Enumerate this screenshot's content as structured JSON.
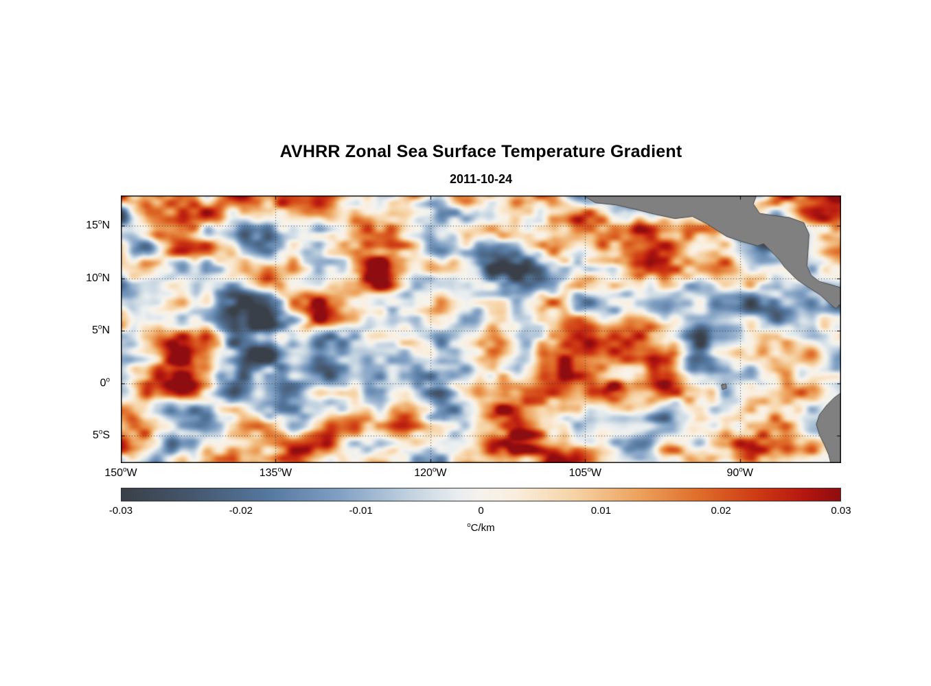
{
  "chart_data": {
    "type": "heatmap",
    "title": "AVHRR Zonal Sea Surface Temperature Gradient",
    "subtitle": "2011-10-24",
    "degree_symbol": "o",
    "colorbar_label_deg": "o",
    "colorbar_label_unit": "C/km",
    "lon_range": [
      -150,
      -80.2
    ],
    "lat_range": [
      -7.6,
      17.9
    ],
    "x_axis": {
      "ticks": [
        {
          "label": "150",
          "hemi": "W",
          "lon": -150
        },
        {
          "label": "135",
          "hemi": "W",
          "lon": -135
        },
        {
          "label": "120",
          "hemi": "W",
          "lon": -120
        },
        {
          "label": "105",
          "hemi": "W",
          "lon": -105
        },
        {
          "label": "90",
          "hemi": "W",
          "lon": -90
        }
      ]
    },
    "y_axis": {
      "ticks": [
        {
          "label": "15",
          "hemi": "N",
          "lat": 15
        },
        {
          "label": "10",
          "hemi": "N",
          "lat": 10
        },
        {
          "label": "5",
          "hemi": "N",
          "lat": 5
        },
        {
          "label": "0",
          "hemi": "",
          "lat": 0
        },
        {
          "label": "5",
          "hemi": "S",
          "lat": -5
        }
      ]
    },
    "colorbar": {
      "min": -0.03,
      "max": 0.03,
      "tick_labels": [
        "-0.03",
        "-0.02",
        "-0.01",
        "0",
        "0.01",
        "0.02",
        "0.03"
      ]
    },
    "colormap_stops": [
      {
        "v": -0.03,
        "c": "#3a4049"
      },
      {
        "v": -0.024,
        "c": "#46586f"
      },
      {
        "v": -0.018,
        "c": "#54779e"
      },
      {
        "v": -0.012,
        "c": "#7f9fc3"
      },
      {
        "v": -0.006,
        "c": "#c2d2e0"
      },
      {
        "v": -0.002,
        "c": "#e9eef0"
      },
      {
        "v": 0.0,
        "c": "#f6f3ec"
      },
      {
        "v": 0.003,
        "c": "#faeedd"
      },
      {
        "v": 0.008,
        "c": "#f6d2a4"
      },
      {
        "v": 0.013,
        "c": "#eda45f"
      },
      {
        "v": 0.018,
        "c": "#e0702c"
      },
      {
        "v": 0.023,
        "c": "#cf3b14"
      },
      {
        "v": 0.027,
        "c": "#b51710"
      },
      {
        "v": 0.03,
        "c": "#8f0d10"
      }
    ],
    "grid": true,
    "grid_color": "#3a3a3a",
    "land_color": "#808080",
    "coast_color": "#474747",
    "noise": {
      "seed": 20111024,
      "gain": 1.7,
      "bias": 0.04,
      "octaves": [
        {
          "wx": 95,
          "wy": 55,
          "amp": 0.5
        },
        {
          "wx": 42,
          "wy": 26,
          "amp": 0.33
        },
        {
          "wx": 18,
          "wy": 12,
          "amp": 0.17
        }
      ]
    },
    "land_polygons": {
      "central_america": [
        [
          -105.2,
          17.9
        ],
        [
          -104.0,
          17.2
        ],
        [
          -102.0,
          17.0
        ],
        [
          -100.2,
          16.6
        ],
        [
          -98.2,
          16.1
        ],
        [
          -96.3,
          15.7
        ],
        [
          -94.6,
          15.9
        ],
        [
          -93.2,
          15.2
        ],
        [
          -91.3,
          14.0
        ],
        [
          -89.8,
          13.5
        ],
        [
          -88.3,
          13.1
        ],
        [
          -87.7,
          13.3
        ],
        [
          -87.2,
          12.8
        ],
        [
          -86.2,
          11.8
        ],
        [
          -85.7,
          11.1
        ],
        [
          -85.1,
          10.5
        ],
        [
          -84.5,
          9.9
        ],
        [
          -83.3,
          9.1
        ],
        [
          -82.2,
          8.4
        ],
        [
          -81.3,
          7.6
        ],
        [
          -80.7,
          7.1
        ],
        [
          -80.35,
          7.5
        ],
        [
          -80.2,
          7.3
        ],
        [
          -80.2,
          9.1
        ],
        [
          -81.0,
          9.35
        ],
        [
          -82.3,
          9.7
        ],
        [
          -83.1,
          10.3
        ],
        [
          -83.5,
          11.2
        ],
        [
          -83.4,
          12.6
        ],
        [
          -83.3,
          14.2
        ],
        [
          -83.8,
          15.3
        ],
        [
          -85.2,
          15.8
        ],
        [
          -86.8,
          16.0
        ],
        [
          -88.1,
          16.2
        ],
        [
          -88.7,
          17.1
        ],
        [
          -88.4,
          17.9
        ]
      ],
      "south_america": [
        [
          -80.2,
          -0.9
        ],
        [
          -80.9,
          -1.4
        ],
        [
          -81.6,
          -2.1
        ],
        [
          -82.3,
          -3.0
        ],
        [
          -82.6,
          -3.9
        ],
        [
          -82.3,
          -4.9
        ],
        [
          -81.8,
          -5.9
        ],
        [
          -81.4,
          -6.8
        ],
        [
          -81.2,
          -7.6
        ],
        [
          -80.2,
          -7.6
        ]
      ],
      "galapagos": [
        [
          -91.8,
          -0.15
        ],
        [
          -91.35,
          -0.05
        ],
        [
          -91.3,
          -0.45
        ],
        [
          -91.7,
          -0.6
        ]
      ]
    }
  }
}
